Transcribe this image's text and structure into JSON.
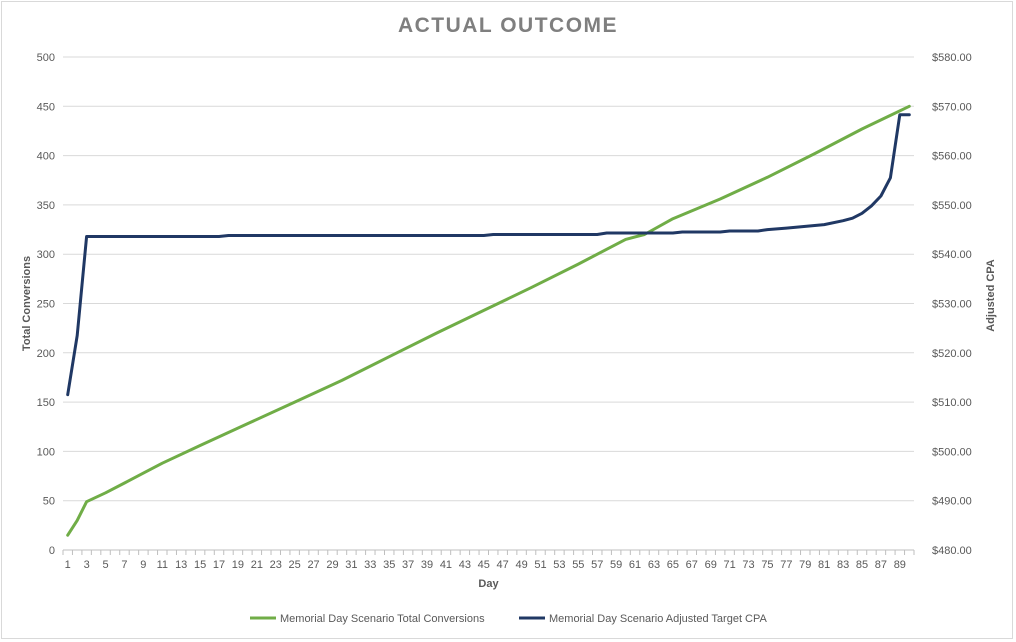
{
  "chart_data": {
    "type": "line",
    "title": "ACTUAL OUTCOME",
    "xlabel": "Day",
    "ylabel_left": "Total Conversions",
    "ylabel_right": "Adjusted CPA",
    "x_range": [
      1,
      90
    ],
    "x_tick_labels": [
      "1",
      "3",
      "5",
      "7",
      "9",
      "11",
      "13",
      "15",
      "17",
      "19",
      "21",
      "23",
      "25",
      "27",
      "29",
      "31",
      "33",
      "35",
      "37",
      "39",
      "41",
      "43",
      "45",
      "47",
      "49",
      "51",
      "53",
      "55",
      "57",
      "59",
      "61",
      "63",
      "65",
      "67",
      "69",
      "71",
      "73",
      "75",
      "77",
      "79",
      "81",
      "83",
      "85",
      "87",
      "89"
    ],
    "ylim_left": [
      0,
      500
    ],
    "y_ticks_left": [
      "0",
      "50",
      "100",
      "150",
      "200",
      "250",
      "300",
      "350",
      "400",
      "450",
      "500"
    ],
    "ylim_right": [
      480,
      580
    ],
    "y_ticks_right": [
      "$480.00",
      "$490.00",
      "$500.00",
      "$510.00",
      "$520.00",
      "$530.00",
      "$540.00",
      "$550.00",
      "$560.00",
      "$570.00",
      "$580.00"
    ],
    "grid": true,
    "legend_position": "bottom",
    "series": [
      {
        "name": "Memorial Day Scenario Total Conversions",
        "axis": "left",
        "color": "#70ad47",
        "points": [
          [
            1,
            15
          ],
          [
            2,
            30
          ],
          [
            3,
            49
          ],
          [
            5,
            58
          ],
          [
            7,
            68
          ],
          [
            9,
            78
          ],
          [
            11,
            88
          ],
          [
            15,
            106
          ],
          [
            20,
            128
          ],
          [
            25,
            150
          ],
          [
            30,
            172
          ],
          [
            35,
            196
          ],
          [
            40,
            220
          ],
          [
            45,
            243
          ],
          [
            50,
            266
          ],
          [
            55,
            290
          ],
          [
            60,
            315
          ],
          [
            62,
            320
          ],
          [
            65,
            336
          ],
          [
            70,
            356
          ],
          [
            75,
            378
          ],
          [
            80,
            402
          ],
          [
            85,
            427
          ],
          [
            90,
            450
          ]
        ]
      },
      {
        "name": "Memorial Day Scenario  Adjusted Target CPA",
        "axis": "right",
        "color": "#203864",
        "points": [
          [
            1,
            511.5
          ],
          [
            2,
            523.5
          ],
          [
            3,
            543.6
          ],
          [
            17,
            543.6
          ],
          [
            18,
            543.8
          ],
          [
            45,
            543.8
          ],
          [
            46,
            544
          ],
          [
            57,
            544
          ],
          [
            58,
            544.3
          ],
          [
            65,
            544.3
          ],
          [
            66,
            544.5
          ],
          [
            70,
            544.5
          ],
          [
            71,
            544.7
          ],
          [
            74,
            544.7
          ],
          [
            75,
            545
          ],
          [
            77,
            545.3
          ],
          [
            81,
            546
          ],
          [
            83,
            546.8
          ],
          [
            84,
            547.3
          ],
          [
            85,
            548.3
          ],
          [
            86,
            549.8
          ],
          [
            87,
            551.8
          ],
          [
            88,
            555.5
          ],
          [
            89,
            568.3
          ],
          [
            90,
            568.3
          ]
        ]
      }
    ]
  }
}
